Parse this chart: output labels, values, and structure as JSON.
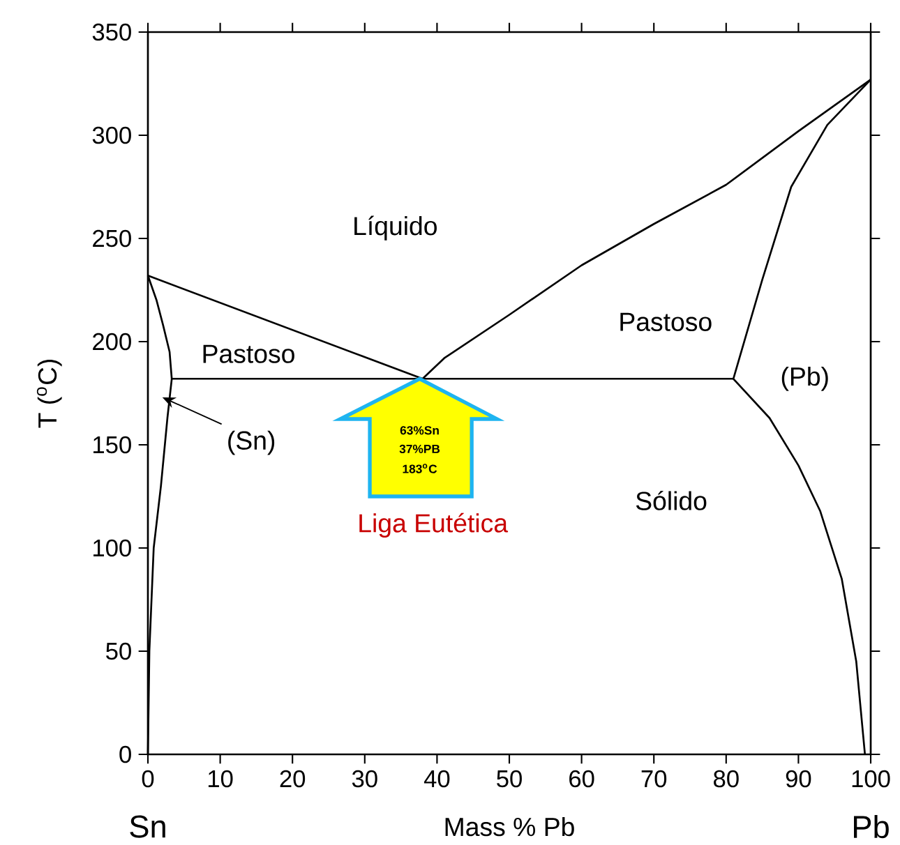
{
  "chart_data": {
    "type": "line",
    "xlabel": "Mass % Pb",
    "ylabel": "T ($^{o}$C)",
    "xlim": [
      0,
      100
    ],
    "ylim": [
      0,
      350
    ],
    "xticks": [
      0,
      10,
      20,
      30,
      40,
      50,
      60,
      70,
      80,
      90,
      100
    ],
    "yticks": [
      0,
      50,
      100,
      150,
      200,
      250,
      300,
      350
    ],
    "marker": "none",
    "line_style": "solid",
    "series": [
      {
        "color": "#000000",
        "x": [
          0,
          38,
          41,
          50,
          60,
          70,
          80,
          90,
          100
        ],
        "values": [
          232,
          182,
          192,
          213,
          237,
          257,
          276,
          302,
          327
        ]
      },
      {
        "color": "#000000",
        "x": [
          100,
          94,
          89,
          85,
          81,
          86,
          90,
          93,
          96,
          98,
          99.2
        ],
        "values": [
          327,
          305,
          275,
          230,
          182,
          163,
          140,
          118,
          85,
          45,
          0
        ]
      },
      {
        "color": "#000000",
        "x": [
          3.3,
          81
        ],
        "values": [
          182,
          182
        ]
      },
      {
        "color": "#000000",
        "x": [
          0,
          1.2,
          2.1,
          3,
          3.3,
          2.7,
          1.8,
          0.8,
          0.2,
          0
        ],
        "values": [
          232,
          220,
          208,
          195,
          182,
          163,
          130,
          100,
          50,
          0
        ]
      }
    ],
    "annotations": [
      "Líquido",
      "Pastoso",
      "Pastoso",
      "Sólido",
      {
        "text": "(Sn)",
        "x": 2,
        "y": 173
      },
      "(Pb)",
      "63%Sn",
      "37%PB",
      "183$^{o}$C",
      "Liga Eutética",
      "Sn",
      "Pb"
    ]
  }
}
